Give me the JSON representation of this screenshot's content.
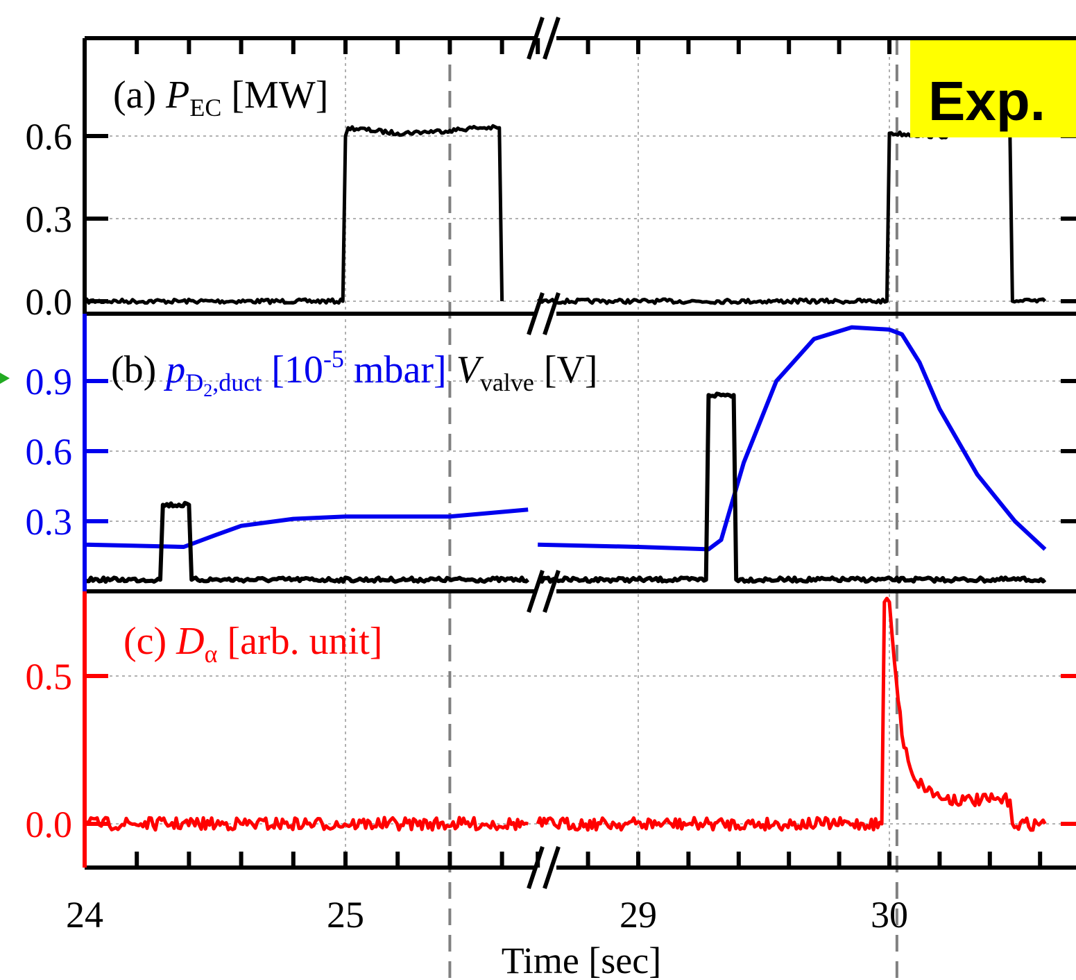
{
  "figure": {
    "exp_badge": "Exp.",
    "badge_color": "#ffff00",
    "xlabel": "Time [sec]",
    "x_ticks": [
      "24",
      "25",
      "29",
      "30"
    ],
    "axis_break": "//"
  },
  "panels": {
    "a": {
      "prefix": "(a) ",
      "symbol": "P",
      "subscript": "EC",
      "unit": " [MW]",
      "yticks": [
        "0.0",
        "0.3",
        "0.6"
      ]
    },
    "b": {
      "prefix": "(b) ",
      "symbol1": "p",
      "subscript1_main": "D",
      "subscript1_sub": "2",
      "subscript1_rest": ",duct",
      "unit1_pre": " [10",
      "unit1_exp": "-5",
      "unit1_post": " mbar] ",
      "symbol2": "V",
      "subscript2": "valve",
      "unit2": " [V]",
      "yticks": [
        "0.3",
        "0.6",
        "0.9"
      ]
    },
    "c": {
      "prefix": "(c) ",
      "symbol": "D",
      "subscript": "α",
      "unit": " [arb. unit]",
      "yticks": [
        "0.0",
        "0.5"
      ]
    }
  },
  "colors": {
    "axis": "#000000",
    "pressure": "#0000ee",
    "d_alpha": "#ff0000",
    "valve": "#000000",
    "ec_power": "#000000",
    "grid": "#b0b0b0",
    "guide_dash": "#808080",
    "arrow": "#22aa22"
  },
  "chart_data": [
    {
      "panel": "a",
      "type": "line",
      "ylabel": "(a) P_EC [MW]",
      "ylim": [
        0,
        0.75
      ],
      "x_break": [
        25.7,
        28.6
      ],
      "grid": true,
      "series": [
        {
          "name": "P_EC",
          "x": [
            24.0,
            24.99,
            25.0,
            25.01,
            25.2,
            25.4,
            25.5,
            25.59,
            25.6,
            28.6,
            29.0,
            29.8,
            29.99,
            30.0,
            30.2,
            30.4,
            30.48,
            30.49,
            30.62
          ],
          "y": [
            0.0,
            0.0,
            0.6,
            0.63,
            0.61,
            0.62,
            0.63,
            0.63,
            0.0,
            0.0,
            0.0,
            0.0,
            0.0,
            0.61,
            0.6,
            0.61,
            0.61,
            0.0,
            0.0
          ]
        }
      ]
    },
    {
      "panel": "b",
      "type": "line",
      "ylabel": "(b) p_D2,duct [10^-5 mbar] V_valve [V]",
      "ylim": [
        0.03,
        1.2
      ],
      "x_break": [
        25.7,
        28.6
      ],
      "grid": true,
      "series": [
        {
          "name": "p_D2,duct",
          "x": [
            24.0,
            24.2,
            24.38,
            24.5,
            24.6,
            24.8,
            25.0,
            25.2,
            25.4,
            25.7,
            28.6,
            29.0,
            29.28,
            29.33,
            29.42,
            29.55,
            29.7,
            29.85,
            30.0,
            30.05,
            30.12,
            30.2,
            30.35,
            30.5,
            30.62
          ],
          "y": [
            0.2,
            0.195,
            0.19,
            0.24,
            0.28,
            0.31,
            0.32,
            0.32,
            0.32,
            0.35,
            0.2,
            0.19,
            0.18,
            0.22,
            0.55,
            0.9,
            1.08,
            1.13,
            1.12,
            1.1,
            0.98,
            0.78,
            0.5,
            0.3,
            0.18
          ]
        },
        {
          "name": "V_valve",
          "x": [
            24.0,
            24.29,
            24.3,
            24.4,
            24.41,
            25.7,
            28.6,
            29.27,
            29.28,
            29.38,
            29.39,
            30.62
          ],
          "y": [
            0.05,
            0.05,
            0.37,
            0.37,
            0.05,
            0.05,
            0.05,
            0.05,
            0.84,
            0.84,
            0.05,
            0.05
          ]
        }
      ]
    },
    {
      "panel": "c",
      "type": "line",
      "ylabel": "(c) D_α [arb. unit]",
      "ylim": [
        -0.15,
        0.75
      ],
      "x_break": [
        25.7,
        28.6
      ],
      "grid": true,
      "series": [
        {
          "name": "D_α",
          "x": [
            24.0,
            25.7,
            28.6,
            29.97,
            29.98,
            30.0,
            30.02,
            30.05,
            30.1,
            30.2,
            30.3,
            30.48,
            30.49,
            30.62
          ],
          "y": [
            0.0,
            0.0,
            0.0,
            0.0,
            0.75,
            0.75,
            0.55,
            0.3,
            0.15,
            0.09,
            0.08,
            0.08,
            0.0,
            0.0
          ]
        }
      ]
    }
  ]
}
